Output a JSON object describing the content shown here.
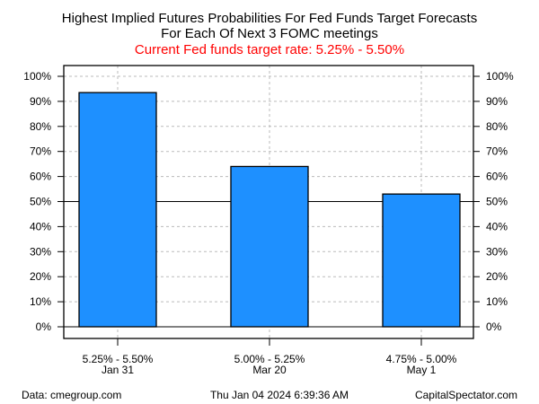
{
  "chart_data": {
    "type": "bar",
    "title": "Highest Implied Futures Probabilities For Fed Funds Target Forecasts",
    "subtitle": "For Each Of Next 3 FOMC meetings",
    "subtitle2": "Current Fed funds target rate: 5.25% - 5.50%",
    "categories": [
      "5.25% - 5.50%",
      "5.00% - 5.25%",
      "4.75% - 5.00%"
    ],
    "category_dates": [
      "Jan 31",
      "Mar 20",
      "May 1"
    ],
    "values": [
      93.5,
      64,
      53
    ],
    "ylim": [
      0,
      100
    ],
    "yticks": [
      "0%",
      "10%",
      "20%",
      "30%",
      "40%",
      "50%",
      "60%",
      "70%",
      "80%",
      "90%",
      "100%"
    ],
    "reference_line": 50,
    "grid": true,
    "bar_color": "#1E90FF",
    "subtitle2_color": "#FF0000"
  },
  "footer": {
    "source": "Data: cmegroup.com",
    "timestamp": "Thu Jan 04 2024 6:39:36 AM",
    "brand": "CapitalSpectator.com"
  }
}
